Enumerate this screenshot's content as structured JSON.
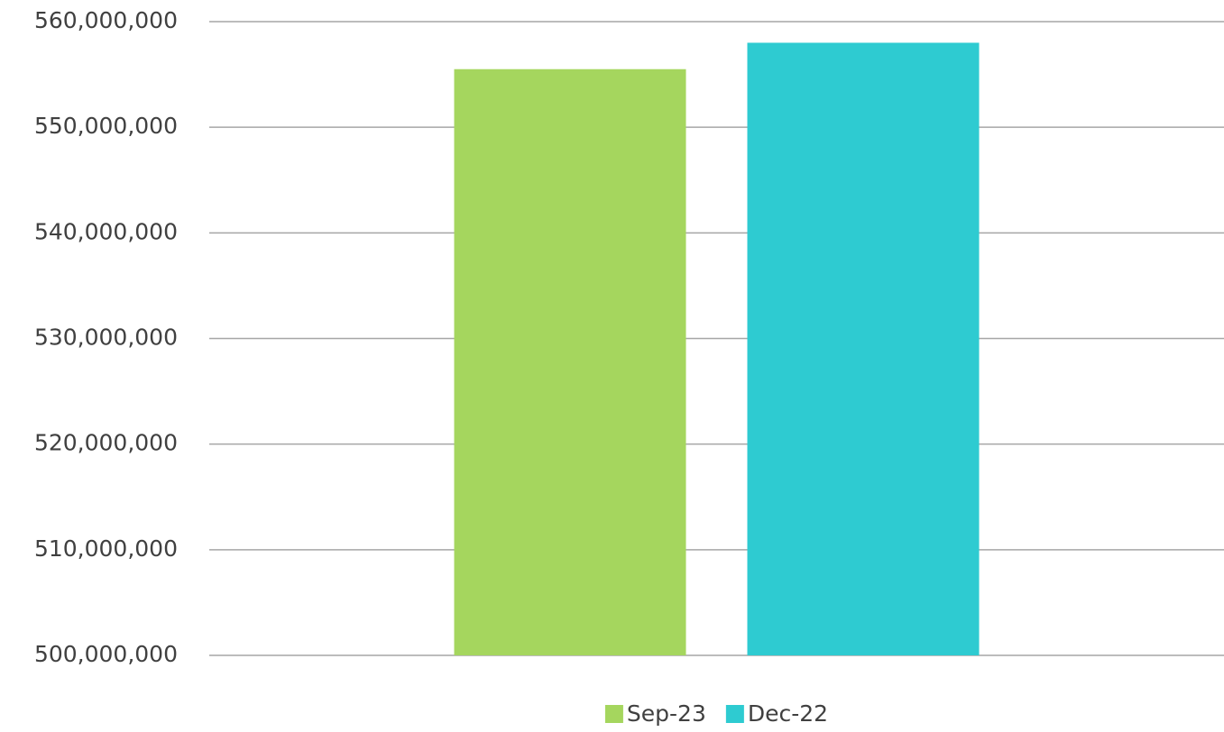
{
  "chart_data": {
    "type": "bar",
    "categories": [
      null
    ],
    "series": [
      {
        "name": "Sep-23",
        "color": "#a5d65e",
        "values": [
          555500000
        ]
      },
      {
        "name": "Dec-22",
        "color": "#2ecbd1",
        "values": [
          558000000
        ]
      }
    ],
    "ylim": [
      500000000,
      560000000
    ],
    "yticks": [
      {
        "value": 500000000,
        "label": "500,000,000"
      },
      {
        "value": 510000000,
        "label": "510,000,000"
      },
      {
        "value": 520000000,
        "label": "520,000,000"
      },
      {
        "value": 530000000,
        "label": "530,000,000"
      },
      {
        "value": 540000000,
        "label": "540,000,000"
      },
      {
        "value": 550000000,
        "label": "550,000,000"
      },
      {
        "value": 560000000,
        "label": "560,000,000"
      }
    ],
    "grid": true,
    "legend": "bottom"
  }
}
